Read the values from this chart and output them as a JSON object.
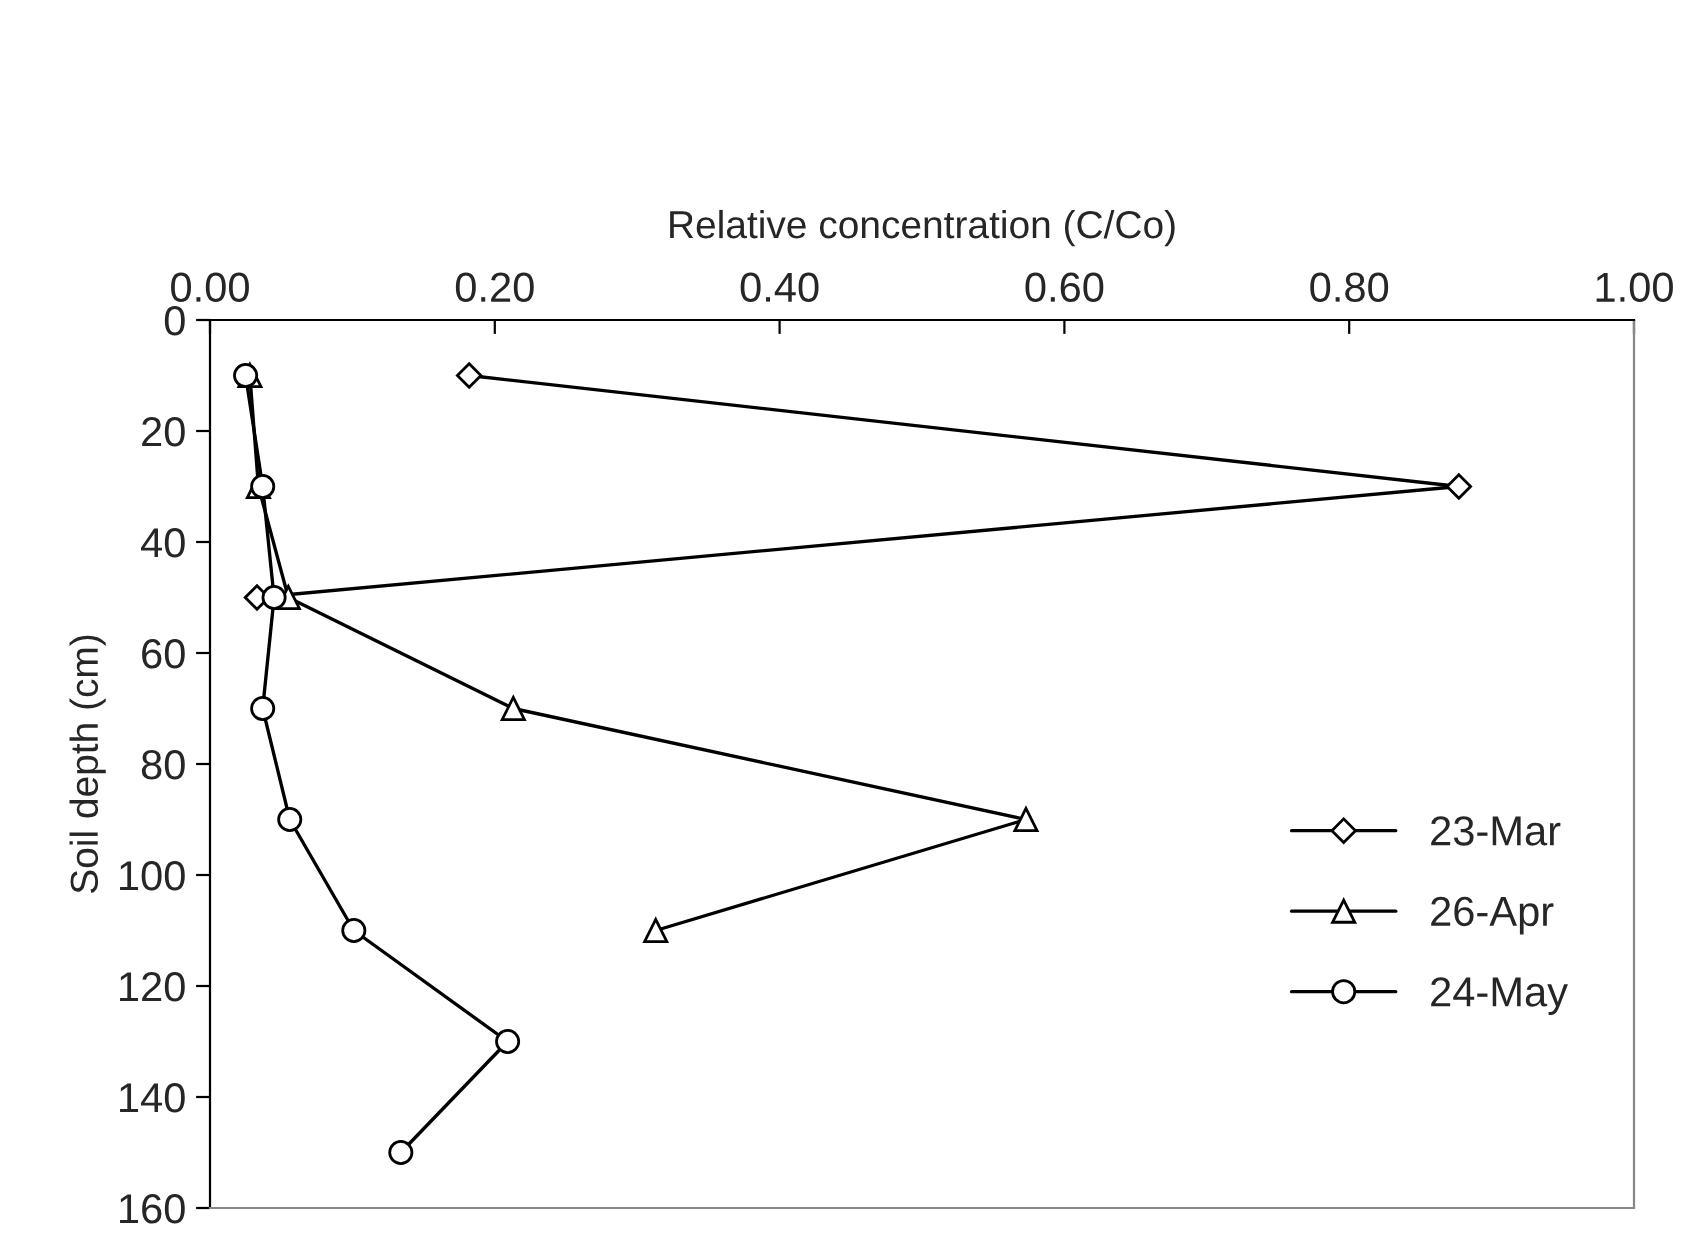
{
  "chart_data": {
    "type": "line",
    "xlabel": "Relative concentration (C/Co)",
    "ylabel": "Soil depth (cm)",
    "xlim": [
      0,
      1
    ],
    "xticks": [
      {
        "value": 0,
        "label": "0.00"
      },
      {
        "value": 0.2,
        "label": "0.20"
      },
      {
        "value": 0.4,
        "label": "0.40"
      },
      {
        "value": 0.6,
        "label": "0.60"
      },
      {
        "value": 0.8,
        "label": "0.80"
      },
      {
        "value": 1,
        "label": "1.00"
      }
    ],
    "ylim": [
      160,
      0
    ],
    "yticks": [
      0,
      20,
      40,
      60,
      80,
      100,
      120,
      140,
      160
    ],
    "grid": false,
    "legend": "right",
    "series": [
      {
        "name": "23-Mar",
        "color": "#000000",
        "marker": "diamond",
        "x": [
          0.182,
          0.877,
          0.033
        ],
        "values": [
          10,
          30,
          50
        ]
      },
      {
        "name": "26-Apr",
        "color": "#000000",
        "marker": "triangle",
        "x": [
          0.028,
          0.034,
          0.055,
          0.213,
          0.573,
          0.313
        ],
        "values": [
          10,
          30,
          50,
          70,
          90,
          110
        ]
      },
      {
        "name": "24-May",
        "color": "#000000",
        "marker": "circle",
        "x": [
          0.025,
          0.037,
          0.045,
          0.037,
          0.056,
          0.101,
          0.209,
          0.134
        ],
        "values": [
          10,
          30,
          50,
          70,
          90,
          110,
          130,
          150
        ]
      }
    ]
  }
}
